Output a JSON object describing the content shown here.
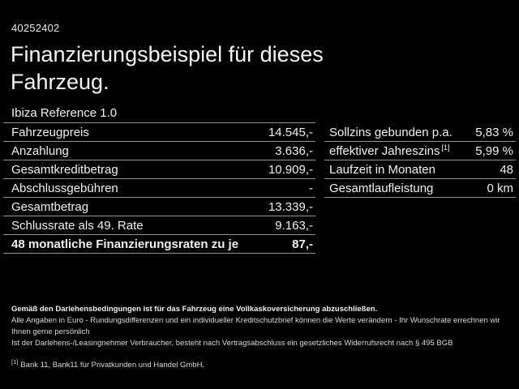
{
  "page": {
    "id_number": "40252402",
    "title": "Finanzierungsbeispiel für dieses Fahrzeug.",
    "model": "Ibiza Reference 1.0"
  },
  "finance_table": {
    "rows": [
      {
        "label": "Fahrzeugpreis",
        "value": "14.545,-"
      },
      {
        "label": "Anzahlung",
        "value": "3.636,-"
      },
      {
        "label": "Gesamtkreditbetrag",
        "value": "10.909,-"
      },
      {
        "label": "Abschlussgebühren",
        "value": "-"
      },
      {
        "label": "Gesamtbetrag",
        "value": "13.339,-"
      },
      {
        "label": "Schlussrate als 49. Rate",
        "value": "9.163,-"
      },
      {
        "label": "48 monatliche Finanzierungsraten zu je",
        "value": "87,-"
      }
    ]
  },
  "conditions_table": {
    "rows": [
      {
        "label": "Sollzins gebunden p.a.",
        "sup": "",
        "value": "5,83 %"
      },
      {
        "label": "effektiver Jahreszins",
        "sup": "[1]",
        "value": "5,99 %"
      },
      {
        "label": "Laufzeit in Monaten",
        "sup": "",
        "value": "48"
      },
      {
        "label": "Gesamtlaufleistung",
        "sup": "",
        "value": "0 km"
      }
    ]
  },
  "footer": {
    "line1": "Gemäß den Darlehensbedingungen ist für das Fahrzeug eine Vollkaskoversicherung abzuschließen.",
    "line2": "Alle Angaben in Euro - Rundungsdifferenzen und ein individueller Kreditschutzbrief können die Werte verändern - Ihr Wunschrate errechnen wir Ihnen gerne persönlich",
    "line3": "Ist der Darlehens-/Leasingnehmer Verbraucher, besteht nach Vertragsabschluss ein gesetzliches Widerrufsrecht nach § 495 BGB",
    "footnote_marker": "[1]",
    "footnote_text": "Bank 11, Bank11 für Privatkunden und Handel GmbH."
  },
  "colors": {
    "background": "#000000",
    "text": "#f0f0f0",
    "divider": "#909090"
  }
}
